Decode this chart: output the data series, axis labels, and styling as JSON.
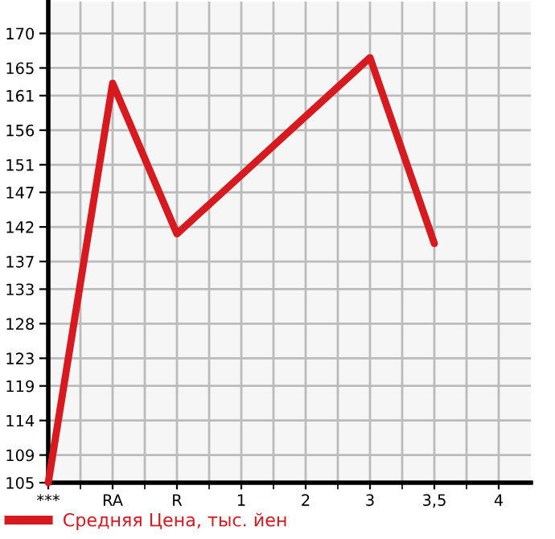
{
  "chart_data": {
    "type": "line",
    "categories": [
      "***",
      "RA",
      "R",
      "1",
      "2",
      "3",
      "3,5",
      "4"
    ],
    "series": [
      {
        "name": "Средняя Цена, тыс. йен",
        "color": "#d71a1f",
        "values": [
          105,
          162.8,
          141.0,
          149.5,
          158.0,
          166.5,
          139.6,
          null
        ]
      }
    ],
    "ylim": [
      105,
      174.6
    ],
    "yticks": [
      105,
      109,
      114,
      119,
      123,
      128,
      133,
      137,
      142,
      147,
      151,
      156,
      161,
      165,
      170
    ],
    "grid": true,
    "legend": "bottom left",
    "marker": "none",
    "line_style": "solid"
  }
}
